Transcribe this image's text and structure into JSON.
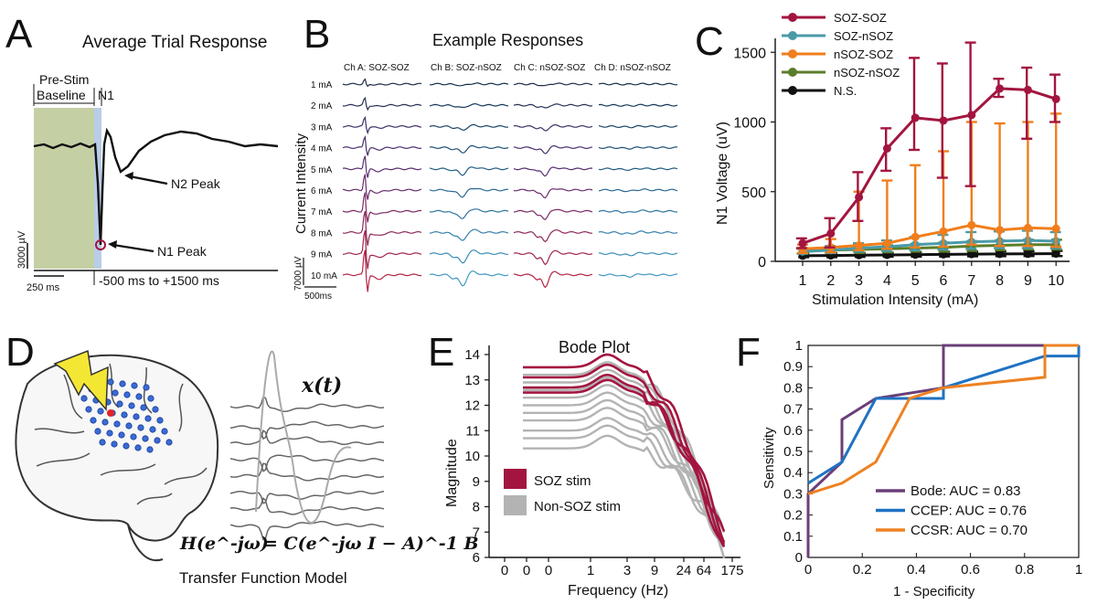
{
  "panels": {
    "A": {
      "letter": "A",
      "title": "Average Trial Response",
      "pre_stim": [
        "Pre-Stim",
        "Baseline"
      ],
      "n1": "N1",
      "n2_peak": "N2 Peak",
      "n1_peak": "N1 Peak",
      "scale_v": "3000 µV",
      "scale_t": "250 ms",
      "window": "-500 ms to +1500 ms"
    },
    "B": {
      "letter": "B",
      "title": "Example Responses",
      "channels": [
        "Ch A: SOZ-SOZ",
        "Ch B: SOZ-nSOZ",
        "Ch C: nSOZ-SOZ",
        "Ch D: nSOZ-nSOZ"
      ],
      "intensities": [
        "1 mA",
        "2 mA",
        "3 mA",
        "4 mA",
        "5 mA",
        "6 mA",
        "7 mA",
        "8 mA",
        "9 mA",
        "10 mA"
      ],
      "ylabel": "Current Intensity",
      "scale_v": "7000 µV",
      "scale_t": "500ms",
      "trace_colors": [
        "#1f2d4a",
        "#2a3158",
        "#3a2f66",
        "#4a2e6e",
        "#5a2d72",
        "#6a2c6c",
        "#7c2a63",
        "#8e2858",
        "#a0264c",
        "#b42545"
      ],
      "trace_colors_b": [
        "#0e2d48",
        "#13385c",
        "#184468",
        "#1d5076",
        "#235c84",
        "#296892",
        "#2f749f",
        "#3580ab",
        "#3b8cb6",
        "#4298c2"
      ]
    },
    "C": {
      "letter": "C",
      "chart_data": {
        "type": "line",
        "x": [
          1,
          2,
          3,
          4,
          5,
          6,
          7,
          8,
          9,
          10
        ],
        "xlabel": "Stimulation Intensity (mA)",
        "ylabel": "N1 Voltage (uV)",
        "ylim": [
          0,
          1600
        ],
        "yticks": [
          "0",
          "500",
          "1000",
          "1500"
        ],
        "xticks": [
          "1",
          "2",
          "3",
          "4",
          "5",
          "6",
          "7",
          "8",
          "9",
          "10"
        ],
        "legend": "top-left",
        "series": [
          {
            "name": "SOZ-SOZ",
            "color": "#a3153f",
            "values": [
              130,
              200,
              460,
              810,
              1030,
              1010,
              1050,
              1240,
              1230,
              1165
            ],
            "err_hi": [
              165,
              310,
              640,
              955,
              1460,
              1420,
              1570,
              1310,
              1390,
              1340
            ],
            "err_lo": [
              95,
              100,
              290,
              650,
              800,
              600,
              540,
              1180,
              880,
              1000
            ]
          },
          {
            "name": "SOZ-nSOZ",
            "color": "#4a9aa8",
            "values": [
              70,
              80,
              95,
              105,
              120,
              130,
              140,
              145,
              150,
              145
            ],
            "err_hi": [
              90,
              110,
              130,
              150,
              175,
              190,
              210,
              215,
              220,
              210
            ],
            "err_lo": [
              55,
              60,
              70,
              75,
              80,
              85,
              90,
              95,
              95,
              95
            ]
          },
          {
            "name": "nSOZ-SOZ",
            "color": "#f07e1c",
            "values": [
              90,
              100,
              115,
              130,
              175,
              215,
              260,
              225,
              240,
              235
            ],
            "err_hi": [
              120,
              160,
              500,
              580,
              690,
              790,
              1000,
              990,
              1000,
              1060
            ],
            "err_lo": [
              60,
              65,
              80,
              90,
              100,
              105,
              120,
              110,
              110,
              105
            ]
          },
          {
            "name": "nSOZ-nSOZ",
            "color": "#5a7d2a",
            "values": [
              75,
              80,
              85,
              90,
              95,
              100,
              110,
              115,
              120,
              120
            ],
            "err_hi": [
              95,
              100,
              110,
              115,
              125,
              135,
              145,
              150,
              155,
              155
            ],
            "err_lo": [
              55,
              60,
              60,
              65,
              70,
              70,
              75,
              80,
              85,
              85
            ]
          },
          {
            "name": "N.S.",
            "color": "#111111",
            "values": [
              40,
              42,
              44,
              46,
              48,
              50,
              52,
              53,
              54,
              55
            ],
            "err_hi": [
              55,
              58,
              60,
              62,
              65,
              68,
              70,
              72,
              73,
              75
            ],
            "err_lo": [
              30,
              30,
              32,
              33,
              34,
              35,
              36,
              37,
              38,
              38
            ]
          }
        ]
      }
    },
    "D": {
      "letter": "D",
      "signal": "x(t)",
      "equation_lhs": "H(e^-jω)",
      "equation_rhs": "= C(e^-jω I − A)^-1 B",
      "caption": "Transfer Function Model"
    },
    "E": {
      "letter": "E",
      "chart_data": {
        "type": "line",
        "title": "Bode Plot",
        "xlabel": "Frequency (Hz)",
        "ylabel": "Magnitude",
        "ylim": [
          6,
          14
        ],
        "yticks": [
          "6",
          "7",
          "8",
          "9",
          "10",
          "11",
          "12",
          "13",
          "14"
        ],
        "xticks": [
          "0",
          "0",
          "0",
          "1",
          "3",
          "9",
          "24",
          "64",
          "175"
        ],
        "legend": [
          {
            "name": "SOZ stim",
            "color": "#a3153f"
          },
          {
            "name": "Non-SOZ stim",
            "color": "#b3b3b3"
          }
        ],
        "soz_levels": [
          13.5,
          13.1,
          12.7,
          12.5
        ],
        "non_soz_levels": [
          13.2,
          12.9,
          12.6,
          12.3,
          12.0,
          11.7,
          11.4,
          11.0,
          10.7,
          10.3
        ]
      }
    },
    "F": {
      "letter": "F",
      "chart_data": {
        "type": "line",
        "xlabel": "1 - Specificity",
        "ylabel": "Sensitivity",
        "xlim": [
          0,
          1
        ],
        "ylim": [
          0,
          1
        ],
        "xticks": [
          "0",
          "0.2",
          "0.4",
          "0.6",
          "0.8",
          "1"
        ],
        "yticks": [
          "0",
          "0.1",
          "0.2",
          "0.3",
          "0.4",
          "0.5",
          "0.6",
          "0.7",
          "0.8",
          "0.9",
          "1"
        ],
        "legend": "bottom-right",
        "series": [
          {
            "name": "Bode: AUC = 0.83",
            "color": "#6b3f78",
            "x": [
              0,
              0,
              0.125,
              0.125,
              0.25,
              0.5,
              0.5,
              1
            ],
            "y": [
              0,
              0.3,
              0.45,
              0.65,
              0.75,
              0.8,
              1,
              1
            ]
          },
          {
            "name": "CCEP: AUC = 0.76",
            "color": "#1f72c2",
            "x": [
              0,
              0.125,
              0.25,
              0.5,
              0.5,
              0.875,
              1,
              1
            ],
            "y": [
              0.35,
              0.45,
              0.75,
              0.75,
              0.8,
              0.95,
              0.95,
              1
            ]
          },
          {
            "name": "CCSR: AUC = 0.70",
            "color": "#ee8222",
            "x": [
              0,
              0.125,
              0.25,
              0.375,
              0.5,
              0.875,
              0.875,
              1
            ],
            "y": [
              0.3,
              0.35,
              0.45,
              0.75,
              0.8,
              0.85,
              1,
              1
            ]
          }
        ]
      }
    }
  }
}
